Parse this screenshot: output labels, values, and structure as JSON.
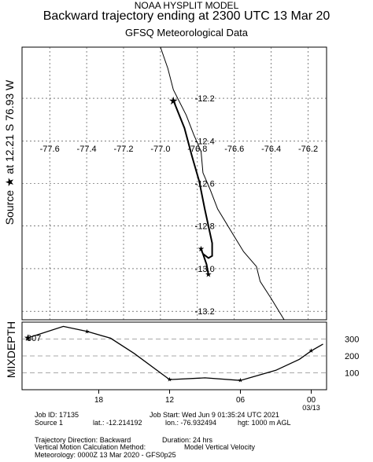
{
  "header": {
    "model": "NOAA HYSPLIT MODEL",
    "title": "Backward trajectory ending at 2300 UTC 13 Mar 20",
    "met_data": "GFSQ Meteorological Data"
  },
  "side_label": "Source ★ at 12.21 S 76.93 W",
  "mixdepth_label": "MIXDEPTH",
  "chart_data": [
    {
      "type": "line",
      "name": "trajectory-map",
      "x_ticks": [
        "-77.6",
        "-77.4",
        "-77.2",
        "-77.0",
        "-76.8",
        "-76.6",
        "-76.4",
        "-76.2"
      ],
      "x_tick_values": [
        -77.6,
        -77.4,
        -77.2,
        -77.0,
        -76.8,
        -76.6,
        -76.4,
        -76.2
      ],
      "y_ticks": [
        "-12.2",
        "-12.4",
        "-12.6",
        "-12.8",
        "-13.0",
        "-13.2"
      ],
      "y_tick_values": [
        -12.2,
        -12.4,
        -12.6,
        -12.8,
        -13.0,
        -13.2
      ],
      "xlim": [
        -77.75,
        -76.1
      ],
      "ylim": [
        -13.24,
        -11.96
      ],
      "grid": "dashed",
      "source": {
        "lon": -76.93,
        "lat": -12.21
      },
      "trajectory": [
        {
          "lon": -76.93,
          "lat": -12.21
        },
        {
          "lon": -76.87,
          "lat": -12.34
        },
        {
          "lon": -76.83,
          "lat": -12.47
        },
        {
          "lon": -76.79,
          "lat": -12.59
        },
        {
          "lon": -76.76,
          "lat": -12.72
        },
        {
          "lon": -76.72,
          "lat": -12.88
        },
        {
          "lon": -76.72,
          "lat": -12.94
        },
        {
          "lon": -76.74,
          "lat": -12.95
        },
        {
          "lon": -76.77,
          "lat": -12.93
        },
        {
          "lon": -76.78,
          "lat": -12.91
        },
        {
          "lon": -76.77,
          "lat": -12.93
        },
        {
          "lon": -76.75,
          "lat": -12.98
        },
        {
          "lon": -76.74,
          "lat": -13.03
        }
      ],
      "markers": [
        {
          "lon": -76.78,
          "lat": -12.91
        },
        {
          "lon": -76.74,
          "lat": -13.03
        }
      ],
      "coastline": [
        {
          "lon": -77.0,
          "lat": -11.96
        },
        {
          "lon": -76.96,
          "lat": -12.06
        },
        {
          "lon": -76.93,
          "lat": -12.16
        },
        {
          "lon": -76.86,
          "lat": -12.28
        },
        {
          "lon": -76.82,
          "lat": -12.37
        },
        {
          "lon": -76.78,
          "lat": -12.45
        },
        {
          "lon": -76.77,
          "lat": -12.55
        },
        {
          "lon": -76.73,
          "lat": -12.63
        },
        {
          "lon": -76.69,
          "lat": -12.72
        },
        {
          "lon": -76.62,
          "lat": -12.82
        },
        {
          "lon": -76.55,
          "lat": -12.92
        },
        {
          "lon": -76.48,
          "lat": -12.99
        },
        {
          "lon": -76.46,
          "lat": -13.06
        },
        {
          "lon": -76.4,
          "lat": -13.14
        },
        {
          "lon": -76.33,
          "lat": -13.24
        }
      ]
    },
    {
      "type": "line",
      "name": "mixdepth",
      "y_ticks": [
        "100",
        "200",
        "300"
      ],
      "y_tick_values": [
        100,
        200,
        300
      ],
      "start_value_label": "307",
      "x_ticks": [
        "18",
        "12",
        "06",
        "00"
      ],
      "x_tick_values": [
        -18,
        -12,
        -6,
        0
      ],
      "x_date_label": "03/13",
      "xlim": [
        -24.5,
        1.3
      ],
      "ylim": [
        0,
        400
      ],
      "series": [
        {
          "x": [
            -24,
            -21,
            -19,
            -17,
            -15,
            -12,
            -9,
            -6,
            -3,
            -1,
            0,
            1
          ],
          "values": [
            307,
            375,
            345,
            305,
            215,
            60,
            70,
            55,
            115,
            180,
            230,
            270
          ]
        }
      ],
      "markers_x": [
        -24,
        -19,
        -12,
        -6,
        0
      ]
    }
  ],
  "footer": {
    "job_id": "Job ID: 17135",
    "job_start": "Job Start: Wed Jun  9 01:35:24 UTC 2021",
    "source": "Source 1",
    "lat": "lat.: -12.214192",
    "lon": "lon.: -76.932494",
    "hgt": "hgt: 1000 m AGL",
    "direction": "Trajectory Direction: Backward",
    "duration": "Duration: 24 hrs",
    "vertical": "Vertical Motion Calculation Method:",
    "vertical_value": "Model Vertical Velocity",
    "meteorology": "Meteorology: 0000Z 13 Mar 2020 - GFS0p25"
  }
}
